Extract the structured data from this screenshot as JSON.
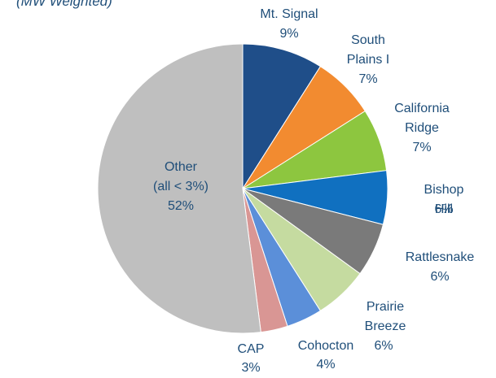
{
  "chart_data": {
    "type": "pie",
    "subtitle": "(MW Weighted)",
    "categories": [
      "Mt. Signal",
      "South\nPlains I",
      "California\nRidge",
      "Bishop Hill",
      "Rattlesnake",
      "Prairie\nBreeze",
      "Cohocton",
      "CAP",
      "Other\n(all < 3%)"
    ],
    "values": [
      9,
      7,
      7,
      6,
      6,
      6,
      4,
      3,
      52
    ],
    "value_labels": [
      "9%",
      "7%",
      "7%",
      "6%",
      "6%",
      "6%",
      "4%",
      "3%",
      "52%"
    ],
    "colors": [
      "#1f4e89",
      "#f28b30",
      "#8dc63f",
      "#1070c0",
      "#7a7a7a",
      "#c5dba0",
      "#5b8fd9",
      "#d99694",
      "#bfbfbf"
    ]
  }
}
